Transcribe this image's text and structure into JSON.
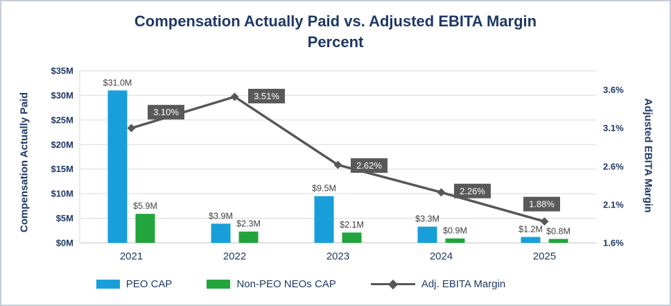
{
  "header": {
    "title_line1": "Compensation Actually Paid vs. Adjusted EBITA Margin",
    "title_line2": "Percent"
  },
  "chart_data": {
    "type": "bar",
    "subtype": "combo-bar-line-dual-axis",
    "title": "Compensation Actually Paid vs. Adjusted EBITA Margin Percent",
    "categories": [
      "2021",
      "2022",
      "2023",
      "2024",
      "2025"
    ],
    "bar_series": [
      {
        "name": "PEO CAP",
        "color": "#189FDA",
        "values_millions": [
          31.0,
          3.9,
          9.5,
          3.3,
          1.2
        ],
        "labels": [
          "$31.0M",
          "$3.9M",
          "$9.5M",
          "$3.3M",
          "$1.2M"
        ]
      },
      {
        "name": "Non-PEO NEOs CAP",
        "color": "#22A53C",
        "values_millions": [
          5.9,
          2.3,
          2.1,
          0.9,
          0.8
        ],
        "labels": [
          "$5.9M",
          "$2.3M",
          "$2.1M",
          "$0.9M",
          "$0.8M"
        ]
      }
    ],
    "line_series": {
      "name": "Adj. EBITA Margin",
      "color": "#575757",
      "label_box_color": "#595959",
      "values_percent": [
        3.1,
        3.51,
        2.62,
        2.26,
        1.88
      ],
      "labels": [
        "3.10%",
        "3.51%",
        "2.62%",
        "2.26%",
        "1.88%"
      ]
    },
    "left_axis": {
      "title": "Compensation Actually Paid",
      "ticks": [
        "$0M",
        "$5M",
        "$10M",
        "$15M",
        "$20M",
        "$25M",
        "$30M",
        "$35M"
      ],
      "min": 0,
      "max": 35
    },
    "right_axis": {
      "title": "Adjusted EBITA Margin",
      "ticks": [
        "1.6%",
        "2.1%",
        "2.6%",
        "3.1%",
        "3.6%"
      ],
      "min": 1.6,
      "max": 3.6
    },
    "legend": [
      "PEO CAP",
      "Non-PEO NEOs CAP",
      "Adj. EBITA Margin"
    ],
    "layout": {
      "grid": true,
      "legend_position": "bottom"
    }
  }
}
